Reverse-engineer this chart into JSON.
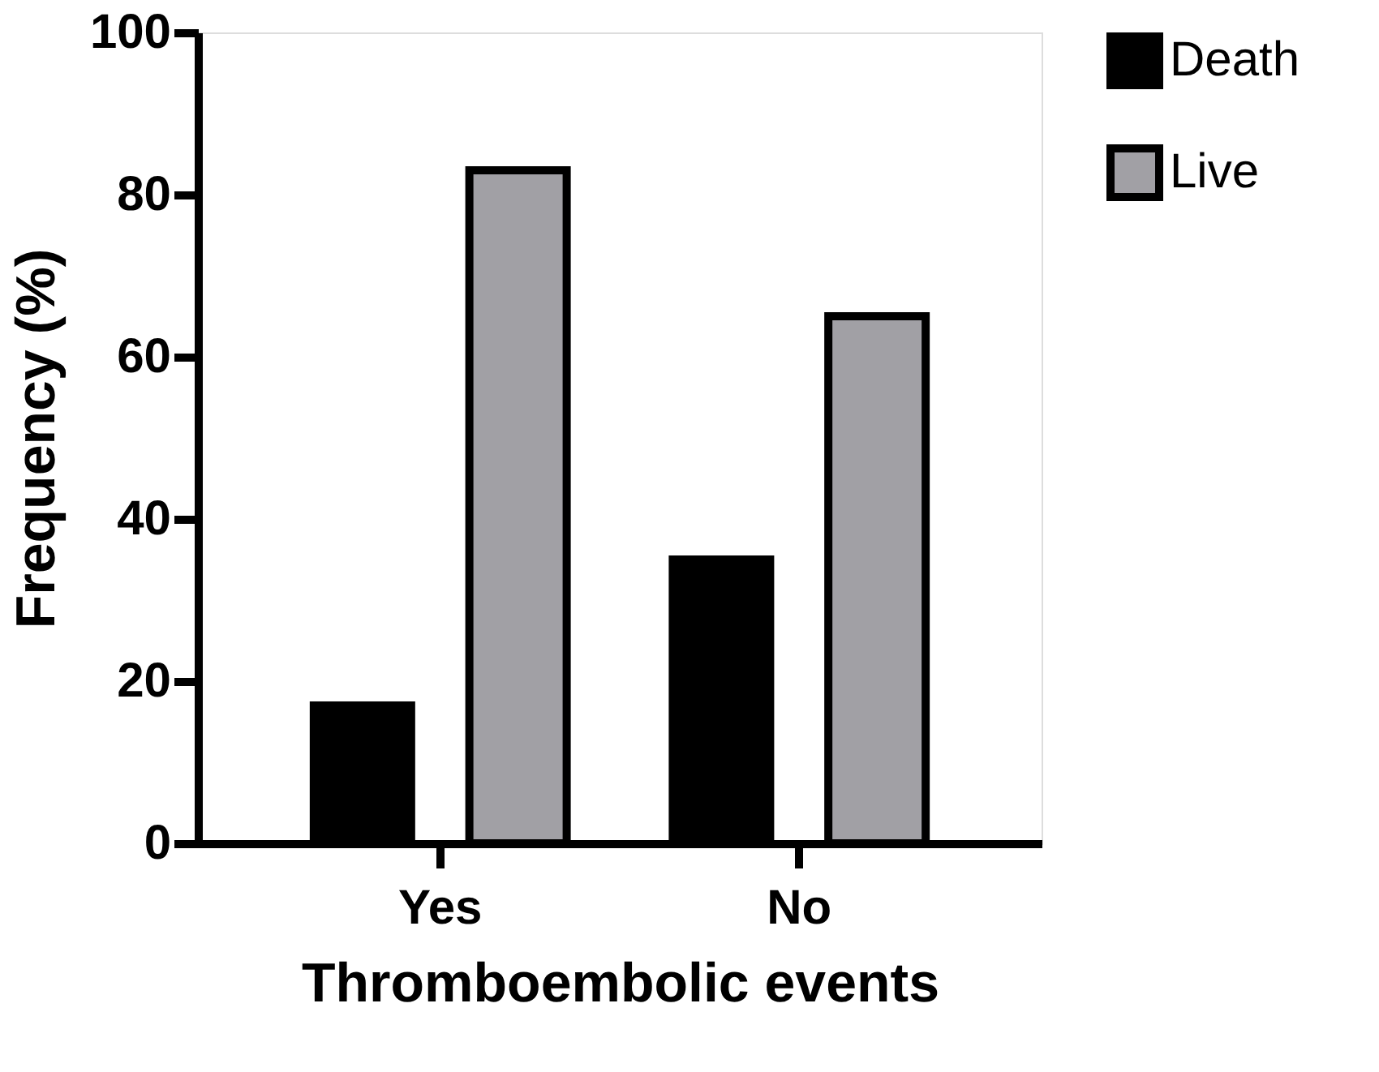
{
  "chart_data": {
    "type": "bar",
    "xlabel": "Thromboembolic events",
    "ylabel": "Frequency (%)",
    "categories": [
      "Yes",
      "No"
    ],
    "series": [
      {
        "name": "Death",
        "color": "#000000",
        "values": [
          17,
          35
        ]
      },
      {
        "name": "Live",
        "color": "#a1a0a5",
        "values": [
          83,
          65
        ]
      }
    ],
    "ylim": [
      0,
      100
    ],
    "yticks": [
      0,
      20,
      40,
      60,
      80,
      100
    ],
    "grid": false,
    "legend": "top right"
  }
}
